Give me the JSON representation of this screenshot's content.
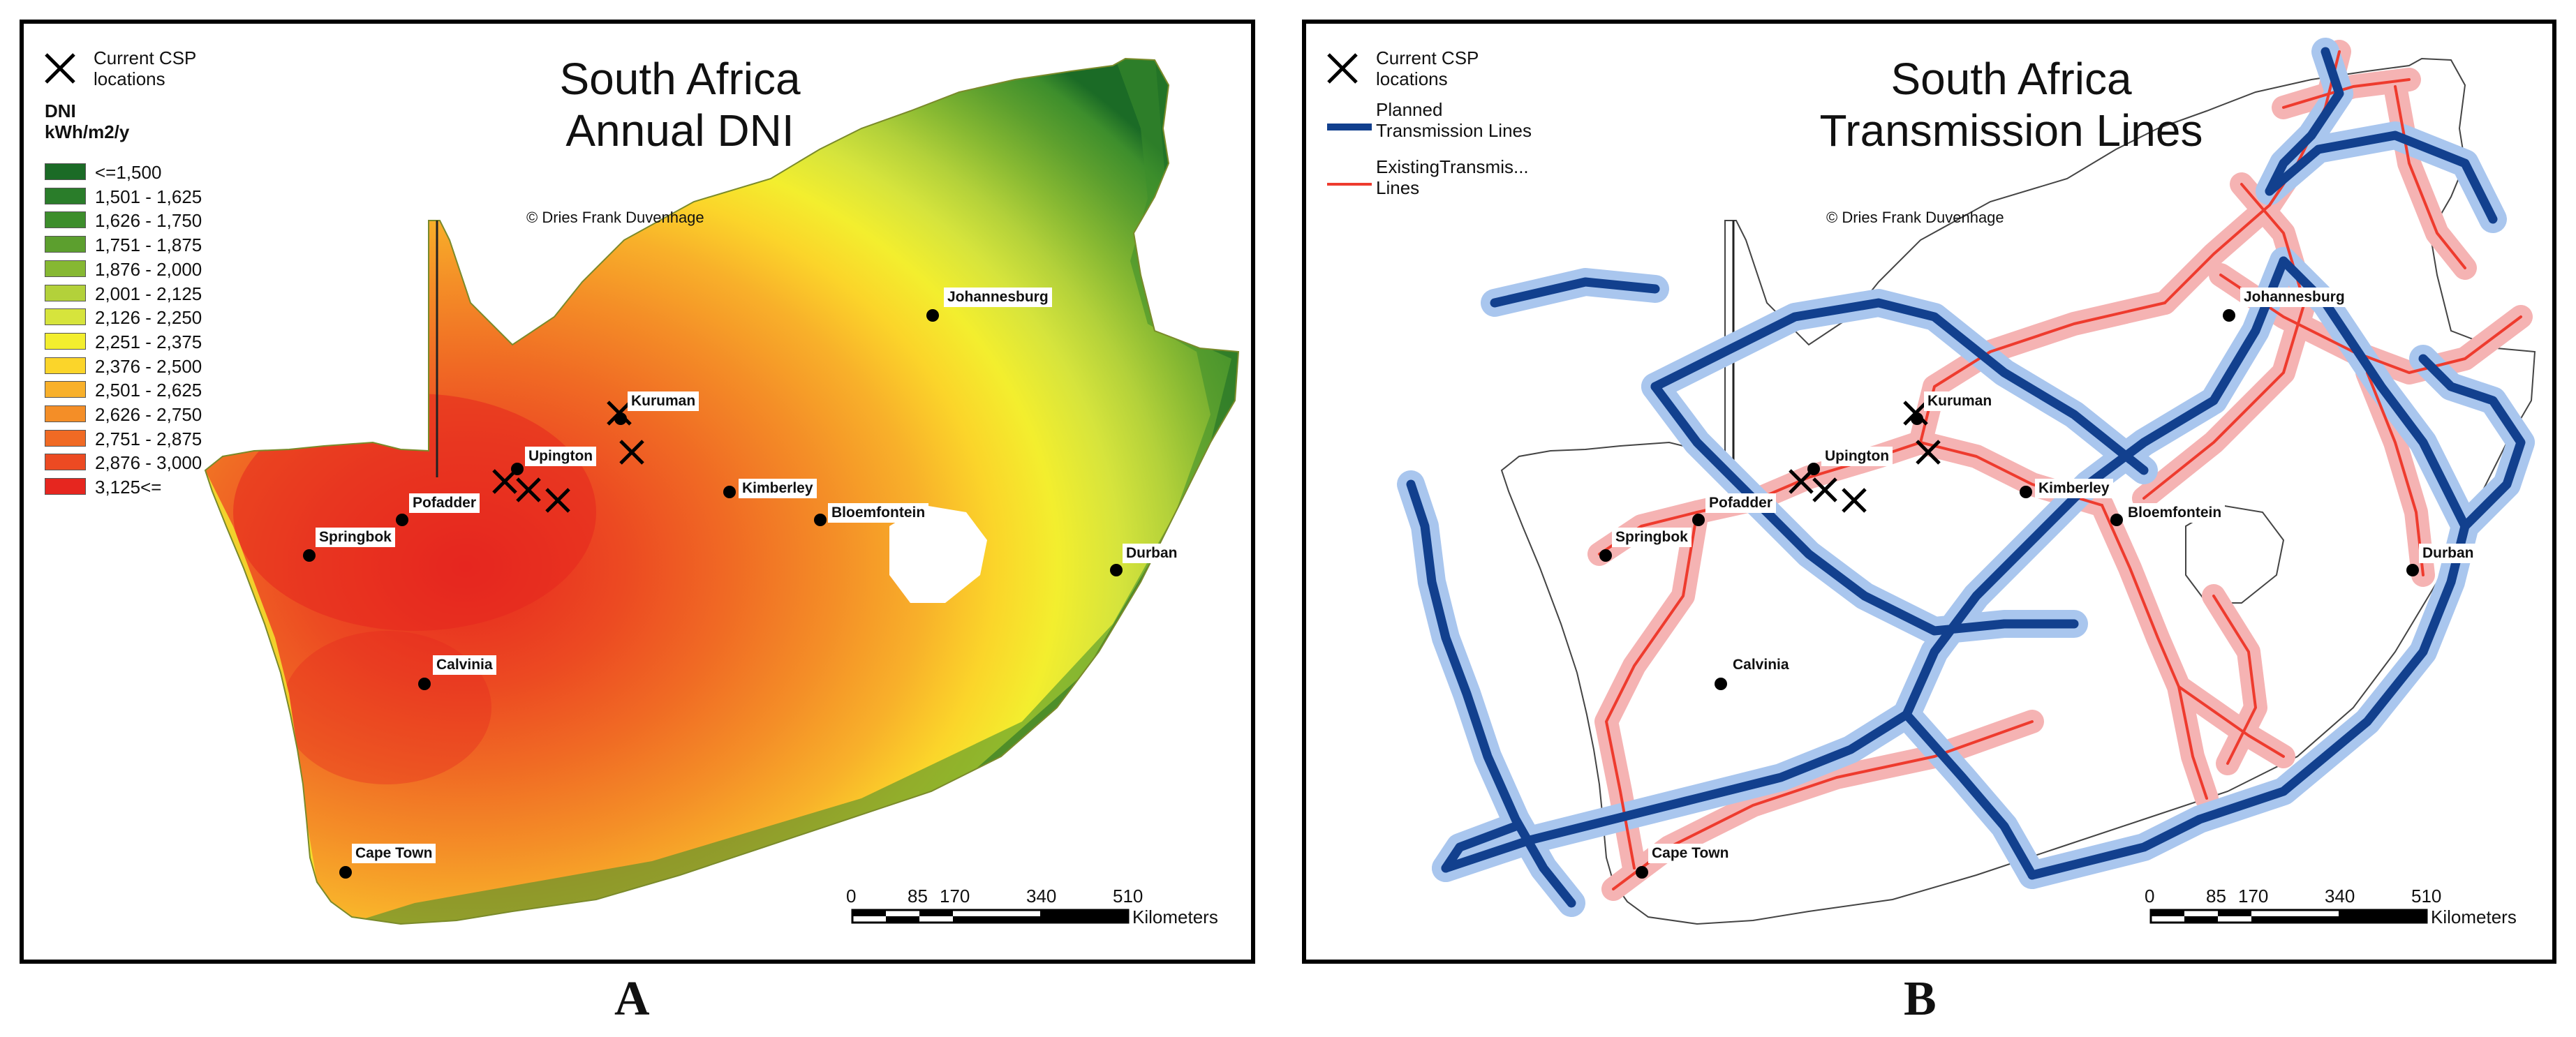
{
  "panel_a": {
    "title_line1": "South Africa",
    "title_line2": "Annual DNI",
    "copyright": "© Dries Frank Duvenhage",
    "legend": {
      "csp_label_line1": "Current CSP",
      "csp_label_line2": "locations",
      "heading_line1": "DNI",
      "heading_line2": "kWh/m2/y",
      "items": [
        {
          "label": "<=1,500",
          "color": "#1b6b26"
        },
        {
          "label": "1,501 - 1,625",
          "color": "#2a7d2a"
        },
        {
          "label": "1,626 - 1,750",
          "color": "#3d8e2c"
        },
        {
          "label": "1,751 - 1,875",
          "color": "#5c9f2e"
        },
        {
          "label": "1,876 - 2,000",
          "color": "#86b832"
        },
        {
          "label": "2,001 - 2,125",
          "color": "#b3d13a"
        },
        {
          "label": "2,126 - 2,250",
          "color": "#d6e43c"
        },
        {
          "label": "2,251 - 2,375",
          "color": "#f3ee2e"
        },
        {
          "label": "2,376 - 2,500",
          "color": "#fbd52a"
        },
        {
          "label": "2,501 - 2,625",
          "color": "#f8b02a"
        },
        {
          "label": "2,626 - 2,750",
          "color": "#f48e27"
        },
        {
          "label": "2,751 - 2,875",
          "color": "#f06a24"
        },
        {
          "label": "2,876 - 3,000",
          "color": "#ec4a22"
        },
        {
          "label": "3,125<=",
          "color": "#e6261f"
        }
      ]
    },
    "cities": {
      "johannesburg": "Johannesburg",
      "kuruman": "Kuruman",
      "upington": "Upington",
      "kimberley": "Kimberley",
      "bloemfontein": "Bloemfontein",
      "pofadder": "Pofadder",
      "springbok": "Springbok",
      "durban": "Durban",
      "calvinia": "Calvinia",
      "cape_town": "Cape Town"
    },
    "scale": {
      "ticks": [
        "0",
        "85",
        "170",
        "340",
        "510"
      ],
      "unit": "Kilometers"
    },
    "letter": "A"
  },
  "panel_b": {
    "title_line1": "South Africa",
    "title_line2": "Transmission Lines",
    "copyright": "© Dries Frank Duvenhage",
    "legend": {
      "csp_label_line1": "Current CSP",
      "csp_label_line2": "locations",
      "planned_line1": "Planned",
      "planned_line2": "Transmission Lines",
      "existing_line1": "ExistingTransmis...",
      "existing_line2": "Lines"
    },
    "cities": {
      "johannesburg": "Johannesburg",
      "kuruman": "Kuruman",
      "upington": "Upington",
      "kimberley": "Kimberley",
      "bloemfontein": "Bloemfontein",
      "pofadder": "Pofadder",
      "springbok": "Springbok",
      "durban": "Durban",
      "calvinia": "Calvinia",
      "cape_town": "Cape Town"
    },
    "scale": {
      "ticks": [
        "0",
        "85",
        "170",
        "340",
        "510"
      ],
      "unit": "Kilometers"
    },
    "letter": "B"
  },
  "colors": {
    "planned_line": "#12408e",
    "planned_buffer": "#a9c6ee",
    "existing_line": "#ee3b2e",
    "existing_buffer": "#f5b3b3"
  }
}
